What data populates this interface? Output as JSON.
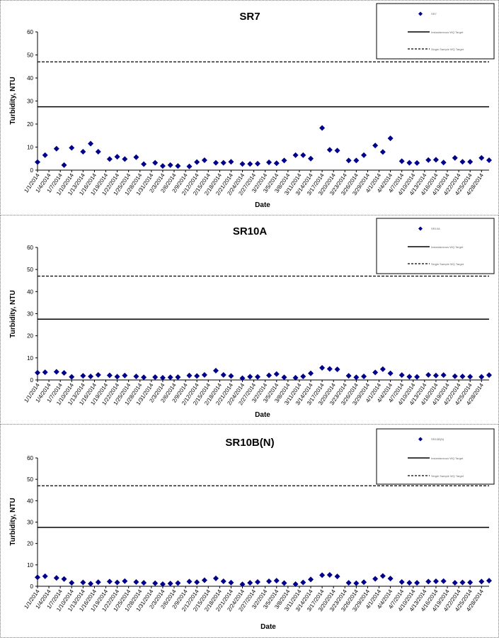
{
  "chart_data": [
    {
      "type": "scatter",
      "title": "SR7",
      "xlabel": "Date",
      "ylabel": "Turbidity, NTU",
      "ylim": [
        0,
        60
      ],
      "yticks": [
        0,
        10,
        20,
        30,
        40,
        50,
        60
      ],
      "x_tick_labels": [
        "1/1/2014",
        "1/4/2014",
        "1/7/2014",
        "1/10/2014",
        "1/13/2014",
        "1/16/2014",
        "1/19/2014",
        "1/22/2014",
        "1/25/2014",
        "1/28/2014",
        "1/31/2014",
        "2/3/2014",
        "2/6/2014",
        "2/9/2014",
        "2/12/2014",
        "2/15/2014",
        "2/18/2014",
        "2/21/2014",
        "2/24/2014",
        "2/27/2014",
        "3/2/2014",
        "3/5/2014",
        "3/8/2014",
        "3/11/2014",
        "3/14/2014",
        "3/17/2014",
        "3/20/2014",
        "3/23/2014",
        "3/26/2014",
        "3/29/2014",
        "4/1/2014",
        "4/4/2014",
        "4/7/2014",
        "4/10/2014",
        "4/13/2014",
        "4/16/2014",
        "4/19/2014",
        "4/22/2014",
        "4/25/2014",
        "4/28/2014"
      ],
      "x_range": [
        "1/1/2014",
        "4/30/2014"
      ],
      "hlines": [
        {
          "value": 27.5,
          "style": "solid"
        },
        {
          "value": 47,
          "style": "dashed"
        }
      ],
      "legend_position": "top-right",
      "legend_entries": [
        "SR7",
        "Instantaneous WQ Target",
        "Single Sample WQ Target"
      ],
      "marker_color": "#00008B",
      "points": [
        [
          "1/1/2014",
          3.5
        ],
        [
          "1/3/2014",
          6.5
        ],
        [
          "1/6/2014",
          9.3
        ],
        [
          "1/8/2014",
          2.2
        ],
        [
          "1/10/2014",
          9.7
        ],
        [
          "1/13/2014",
          8.0
        ],
        [
          "1/15/2014",
          11.5
        ],
        [
          "1/17/2014",
          8.0
        ],
        [
          "1/20/2014",
          4.8
        ],
        [
          "1/22/2014",
          5.8
        ],
        [
          "1/24/2014",
          4.8
        ],
        [
          "1/27/2014",
          5.6
        ],
        [
          "1/29/2014",
          2.6
        ],
        [
          "2/1/2014",
          3.2
        ],
        [
          "2/3/2014",
          1.8
        ],
        [
          "2/5/2014",
          2.2
        ],
        [
          "2/7/2014",
          1.8
        ],
        [
          "2/10/2014",
          1.6
        ],
        [
          "2/12/2014",
          3.5
        ],
        [
          "2/14/2014",
          4.3
        ],
        [
          "2/17/2014",
          3.2
        ],
        [
          "2/19/2014",
          3.2
        ],
        [
          "2/21/2014",
          3.6
        ],
        [
          "2/24/2014",
          2.7
        ],
        [
          "2/26/2014",
          2.7
        ],
        [
          "2/28/2014",
          2.8
        ],
        [
          "3/3/2014",
          3.4
        ],
        [
          "3/5/2014",
          3.0
        ],
        [
          "3/7/2014",
          4.2
        ],
        [
          "3/10/2014",
          6.5
        ],
        [
          "3/12/2014",
          6.5
        ],
        [
          "3/14/2014",
          5.0
        ],
        [
          "3/17/2014",
          18.3
        ],
        [
          "3/19/2014",
          8.8
        ],
        [
          "3/21/2014",
          8.5
        ],
        [
          "3/24/2014",
          4.2
        ],
        [
          "3/26/2014",
          4.2
        ],
        [
          "3/28/2014",
          6.5
        ],
        [
          "3/31/2014",
          10.7
        ],
        [
          "4/2/2014",
          7.9
        ],
        [
          "4/4/2014",
          13.8
        ],
        [
          "4/7/2014",
          3.9
        ],
        [
          "4/9/2014",
          3.2
        ],
        [
          "4/11/2014",
          3.1
        ],
        [
          "4/14/2014",
          4.4
        ],
        [
          "4/16/2014",
          4.5
        ],
        [
          "4/18/2014",
          3.3
        ],
        [
          "4/21/2014",
          5.3
        ],
        [
          "4/23/2014",
          3.6
        ],
        [
          "4/25/2014",
          3.6
        ],
        [
          "4/28/2014",
          5.3
        ],
        [
          "4/30/2014",
          4.3
        ]
      ]
    },
    {
      "type": "scatter",
      "title": "SR10A",
      "xlabel": "Date",
      "ylabel": "Turbidity, NTU",
      "ylim": [
        0,
        60
      ],
      "yticks": [
        0,
        10,
        20,
        30,
        40,
        50,
        60
      ],
      "x_tick_labels": [
        "1/1/2014",
        "1/4/2014",
        "1/7/2014",
        "1/10/2014",
        "1/13/2014",
        "1/16/2014",
        "1/19/2014",
        "1/22/2014",
        "1/25/2014",
        "1/28/2014",
        "1/31/2014",
        "2/3/2014",
        "2/6/2014",
        "2/9/2014",
        "2/12/2014",
        "2/15/2014",
        "2/18/2014",
        "2/21/2014",
        "2/24/2014",
        "2/27/2014",
        "3/2/2014",
        "3/5/2014",
        "3/8/2014",
        "3/11/2014",
        "3/14/2014",
        "3/17/2014",
        "3/20/2014",
        "3/23/2014",
        "3/26/2014",
        "3/29/2014",
        "4/1/2014",
        "4/4/2014",
        "4/7/2014",
        "4/10/2014",
        "4/13/2014",
        "4/16/2014",
        "4/19/2014",
        "4/22/2014",
        "4/25/2014",
        "4/28/2014"
      ],
      "x_range": [
        "1/1/2014",
        "4/30/2014"
      ],
      "hlines": [
        {
          "value": 27.5,
          "style": "solid"
        },
        {
          "value": 47,
          "style": "dashed"
        }
      ],
      "legend_position": "top-right",
      "legend_entries": [
        "SR10A",
        "Instantaneous WQ Target",
        "Single Sample WQ Target"
      ],
      "marker_color": "#00008B",
      "points": [
        [
          "1/1/2014",
          3.3
        ],
        [
          "1/3/2014",
          3.5
        ],
        [
          "1/6/2014",
          3.7
        ],
        [
          "1/8/2014",
          3.2
        ],
        [
          "1/10/2014",
          1.4
        ],
        [
          "1/13/2014",
          1.9
        ],
        [
          "1/15/2014",
          1.6
        ],
        [
          "1/17/2014",
          2.3
        ],
        [
          "1/20/2014",
          2.1
        ],
        [
          "1/22/2014",
          1.5
        ],
        [
          "1/24/2014",
          2.0
        ],
        [
          "1/27/2014",
          1.6
        ],
        [
          "1/29/2014",
          1.2
        ],
        [
          "2/1/2014",
          1.3
        ],
        [
          "2/3/2014",
          1.0
        ],
        [
          "2/5/2014",
          1.2
        ],
        [
          "2/7/2014",
          1.3
        ],
        [
          "2/10/2014",
          2.0
        ],
        [
          "2/12/2014",
          1.8
        ],
        [
          "2/14/2014",
          2.3
        ],
        [
          "2/17/2014",
          4.2
        ],
        [
          "2/19/2014",
          2.3
        ],
        [
          "2/21/2014",
          1.8
        ],
        [
          "2/24/2014",
          0.8
        ],
        [
          "2/26/2014",
          1.5
        ],
        [
          "2/28/2014",
          1.4
        ],
        [
          "3/3/2014",
          2.1
        ],
        [
          "3/5/2014",
          2.7
        ],
        [
          "3/7/2014",
          1.2
        ],
        [
          "3/10/2014",
          1.0
        ],
        [
          "3/12/2014",
          1.6
        ],
        [
          "3/14/2014",
          3.0
        ],
        [
          "3/17/2014",
          5.5
        ],
        [
          "3/19/2014",
          5.0
        ],
        [
          "3/21/2014",
          4.8
        ],
        [
          "3/24/2014",
          1.9
        ],
        [
          "3/26/2014",
          1.2
        ],
        [
          "3/28/2014",
          1.6
        ],
        [
          "3/31/2014",
          3.4
        ],
        [
          "4/2/2014",
          4.9
        ],
        [
          "4/4/2014",
          3.0
        ],
        [
          "4/7/2014",
          2.2
        ],
        [
          "4/9/2014",
          1.5
        ],
        [
          "4/11/2014",
          1.4
        ],
        [
          "4/14/2014",
          2.3
        ],
        [
          "4/16/2014",
          2.0
        ],
        [
          "4/18/2014",
          2.2
        ],
        [
          "4/21/2014",
          1.7
        ],
        [
          "4/23/2014",
          1.6
        ],
        [
          "4/25/2014",
          1.5
        ],
        [
          "4/28/2014",
          1.4
        ],
        [
          "4/30/2014",
          2.2
        ]
      ]
    },
    {
      "type": "scatter",
      "title": "SR10B(N)",
      "xlabel": "Date",
      "ylabel": "Turbidity, NTU",
      "ylim": [
        0,
        60
      ],
      "yticks": [
        0,
        10,
        20,
        30,
        40,
        50,
        60
      ],
      "x_tick_labels": [
        "1/1/2014",
        "1/4/2014",
        "1/7/2014",
        "1/10/2014",
        "1/13/2014",
        "1/16/2014",
        "1/19/2014",
        "1/22/2014",
        "1/25/2014",
        "1/28/2014",
        "1/31/2014",
        "2/3/2014",
        "2/6/2014",
        "2/9/2014",
        "2/12/2014",
        "2/15/2014",
        "2/18/2014",
        "2/21/2014",
        "2/24/2014",
        "2/27/2014",
        "3/2/2014",
        "3/5/2014",
        "3/8/2014",
        "3/11/2014",
        "3/14/2014",
        "3/17/2014",
        "3/20/2014",
        "3/23/2014",
        "3/26/2014",
        "3/29/2014",
        "4/1/2014",
        "4/4/2014",
        "4/7/2014",
        "4/10/2014",
        "4/13/2014",
        "4/16/2014",
        "4/19/2014",
        "4/22/2014",
        "4/25/2014",
        "4/28/2014"
      ],
      "x_range": [
        "1/1/2014",
        "4/30/2014"
      ],
      "hlines": [
        {
          "value": 27.5,
          "style": "solid"
        },
        {
          "value": 47,
          "style": "dashed"
        }
      ],
      "legend_position": "top-right",
      "legend_entries": [
        "SR10B(N)",
        "Instantaneous WQ Target",
        "Single Sample WQ Target"
      ],
      "marker_color": "#00008B",
      "points": [
        [
          "1/1/2014",
          4.2
        ],
        [
          "1/3/2014",
          4.7
        ],
        [
          "1/6/2014",
          3.9
        ],
        [
          "1/8/2014",
          3.4
        ],
        [
          "1/10/2014",
          1.6
        ],
        [
          "1/13/2014",
          1.8
        ],
        [
          "1/15/2014",
          1.2
        ],
        [
          "1/17/2014",
          1.9
        ],
        [
          "1/20/2014",
          2.2
        ],
        [
          "1/22/2014",
          1.8
        ],
        [
          "1/24/2014",
          2.4
        ],
        [
          "1/27/2014",
          2.0
        ],
        [
          "1/29/2014",
          1.6
        ],
        [
          "2/1/2014",
          1.4
        ],
        [
          "2/3/2014",
          1.0
        ],
        [
          "2/5/2014",
          1.3
        ],
        [
          "2/7/2014",
          1.5
        ],
        [
          "2/10/2014",
          2.2
        ],
        [
          "2/12/2014",
          1.9
        ],
        [
          "2/14/2014",
          2.8
        ],
        [
          "2/17/2014",
          3.7
        ],
        [
          "2/19/2014",
          2.3
        ],
        [
          "2/21/2014",
          1.7
        ],
        [
          "2/24/2014",
          0.9
        ],
        [
          "2/26/2014",
          1.6
        ],
        [
          "2/28/2014",
          2.0
        ],
        [
          "3/3/2014",
          2.3
        ],
        [
          "3/5/2014",
          2.6
        ],
        [
          "3/7/2014",
          1.5
        ],
        [
          "3/10/2014",
          1.0
        ],
        [
          "3/12/2014",
          1.8
        ],
        [
          "3/14/2014",
          3.2
        ],
        [
          "3/17/2014",
          5.2
        ],
        [
          "3/19/2014",
          5.3
        ],
        [
          "3/21/2014",
          4.6
        ],
        [
          "3/24/2014",
          1.6
        ],
        [
          "3/26/2014",
          1.4
        ],
        [
          "3/28/2014",
          1.9
        ],
        [
          "3/31/2014",
          3.5
        ],
        [
          "4/2/2014",
          4.8
        ],
        [
          "4/4/2014",
          3.6
        ],
        [
          "4/7/2014",
          2.0
        ],
        [
          "4/9/2014",
          1.6
        ],
        [
          "4/11/2014",
          1.6
        ],
        [
          "4/14/2014",
          2.2
        ],
        [
          "4/16/2014",
          2.3
        ],
        [
          "4/18/2014",
          2.4
        ],
        [
          "4/21/2014",
          1.6
        ],
        [
          "4/23/2014",
          1.8
        ],
        [
          "4/25/2014",
          1.8
        ],
        [
          "4/28/2014",
          2.2
        ],
        [
          "4/30/2014",
          2.6
        ]
      ]
    }
  ]
}
